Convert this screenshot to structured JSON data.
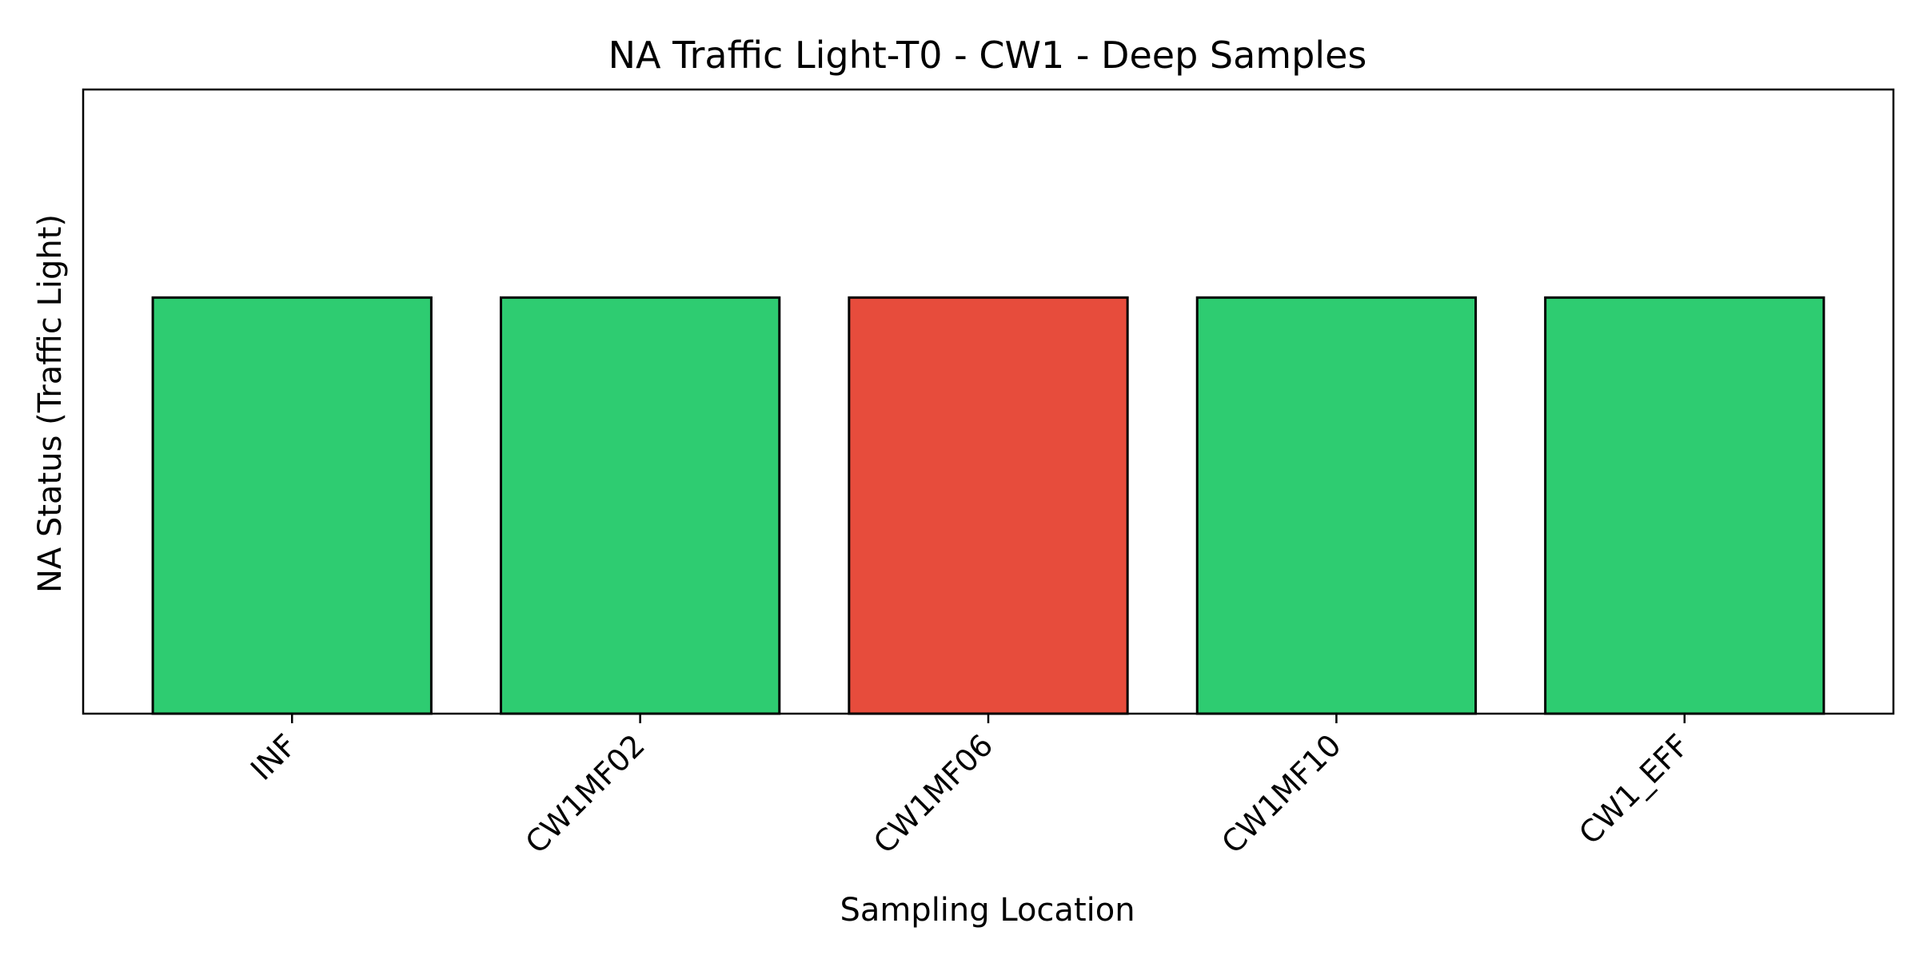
{
  "chart_data": {
    "type": "bar",
    "title": "NA Traffic Light-T0 - CW1 - Deep Samples",
    "xlabel": "Sampling Location",
    "ylabel": "NA Status (Traffic Light)",
    "categories": [
      "INF",
      "CW1MF02",
      "CW1MF06",
      "CW1MF10",
      "CW1_EFF"
    ],
    "values": [
      1,
      1,
      1,
      1,
      1
    ],
    "status": [
      "green",
      "green",
      "red",
      "green",
      "green"
    ],
    "ylim": [
      0,
      1.5
    ],
    "y_ticks_shown": false,
    "grid": false,
    "legend": "none",
    "colors": {
      "green": "#2ECC71",
      "red": "#E74C3C",
      "edge": "#000000"
    }
  }
}
